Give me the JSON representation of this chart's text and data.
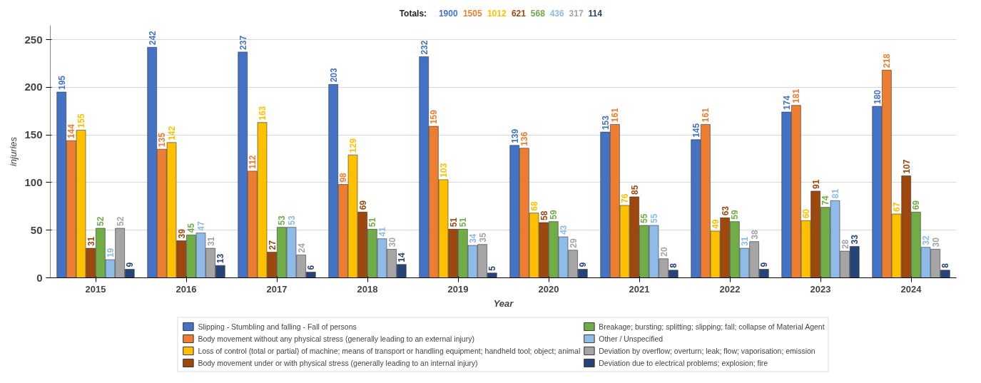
{
  "chart_data": {
    "type": "bar",
    "xlabel": "Year",
    "ylabel": "injuries",
    "categories": [
      "2015",
      "2016",
      "2017",
      "2018",
      "2019",
      "2020",
      "2021",
      "2022",
      "2023",
      "2024"
    ],
    "ylim": [
      0,
      265
    ],
    "yticks": [
      0,
      50,
      100,
      150,
      200,
      250
    ],
    "grid": "y",
    "legend": "bottom",
    "data_labels": true,
    "annotations": [
      "Totals: 1900 1505 1012 621 568 436 317 114"
    ],
    "series": [
      {
        "name": "Slipping - Stumbling and falling - Fall of persons",
        "color": "#4472c4",
        "values": [
          195,
          242,
          237,
          203,
          232,
          139,
          153,
          145,
          174,
          180
        ]
      },
      {
        "name": "Body movement without any physical stress (generally leading to an external injury)",
        "color": "#ed7d31",
        "values": [
          144,
          135,
          112,
          98,
          159,
          136,
          161,
          161,
          181,
          218
        ]
      },
      {
        "name": "Loss of control (total or partial) of machine; means of transport or handling equipment; handheld tool; object; animal",
        "color": "#ffc000",
        "values": [
          155,
          142,
          163,
          129,
          103,
          68,
          76,
          49,
          60,
          67
        ]
      },
      {
        "name": "Body movement under or with physical stress (generally leading to an internal injury)",
        "color": "#9e480e",
        "values": [
          31,
          39,
          27,
          69,
          51,
          58,
          85,
          63,
          91,
          107
        ]
      },
      {
        "name": "Breakage; bursting; splitting; slipping; fall; collapse of Material Agent",
        "color": "#70ad47",
        "values": [
          52,
          45,
          53,
          51,
          51,
          59,
          55,
          59,
          74,
          69
        ]
      },
      {
        "name": "Other / Unspecified",
        "color": "#8fbbe8",
        "values": [
          19,
          47,
          53,
          41,
          34,
          43,
          55,
          31,
          81,
          32
        ]
      },
      {
        "name": "Deviation by overflow; overturn; leak; flow; vaporisation; emission",
        "color": "#a5a5a5",
        "values": [
          52,
          31,
          24,
          30,
          35,
          29,
          20,
          38,
          28,
          30
        ]
      },
      {
        "name": "Deviation due to electrical problems; explosion; fire",
        "color": "#264478",
        "values": [
          9,
          13,
          6,
          14,
          5,
          9,
          8,
          9,
          33,
          8
        ]
      }
    ]
  }
}
